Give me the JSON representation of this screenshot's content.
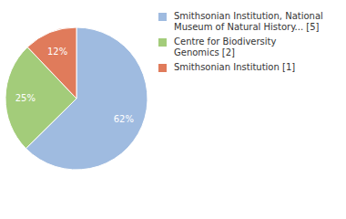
{
  "chart_data": {
    "type": "pie",
    "categories": [
      "Smithsonian Institution, National Museum of Natural History... [5]",
      "Centre for Biodiversity Genomics [2]",
      "Smithsonian Institution [1]"
    ],
    "values": [
      62,
      25,
      12
    ],
    "value_labels": [
      "62%",
      "25%",
      "12%"
    ],
    "colors": [
      "#9fbbe0",
      "#a3cc7a",
      "#e07b5b"
    ],
    "data_labels": true,
    "legend": "right"
  }
}
